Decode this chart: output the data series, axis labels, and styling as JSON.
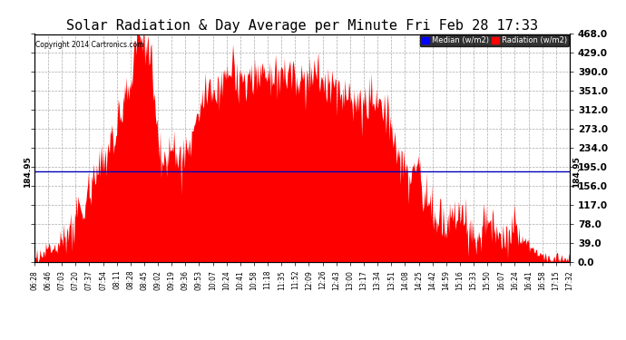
{
  "title": "Solar Radiation & Day Average per Minute Fri Feb 28 17:33",
  "copyright": "Copyright 2014 Cartronics.com",
  "median_value": 184.95,
  "median_label": "184.95",
  "y_ticks": [
    0.0,
    39.0,
    78.0,
    117.0,
    156.0,
    195.0,
    234.0,
    273.0,
    312.0,
    351.0,
    390.0,
    429.0,
    468.0
  ],
  "y_max": 468.0,
  "y_min": 0.0,
  "background_color": "#ffffff",
  "fill_color": "#ff0000",
  "median_line_color": "#0000bb",
  "grid_color": "#aaaaaa",
  "title_fontsize": 11,
  "tick_fontsize": 7.5,
  "x_tick_fontsize": 5.5,
  "legend_median_color": "#0000ff",
  "legend_radiation_color": "#ff0000",
  "x_tick_labels": [
    "06:28",
    "06:46",
    "07:03",
    "07:20",
    "07:37",
    "07:54",
    "08:11",
    "08:28",
    "08:45",
    "09:02",
    "09:19",
    "09:36",
    "09:53",
    "10:07",
    "10:24",
    "10:41",
    "10:58",
    "11:18",
    "11:35",
    "11:52",
    "12:09",
    "12:26",
    "12:43",
    "13:00",
    "13:17",
    "13:34",
    "13:51",
    "14:08",
    "14:25",
    "14:42",
    "14:59",
    "15:16",
    "15:33",
    "15:50",
    "16:07",
    "16:24",
    "16:41",
    "16:58",
    "17:15",
    "17:32"
  ]
}
